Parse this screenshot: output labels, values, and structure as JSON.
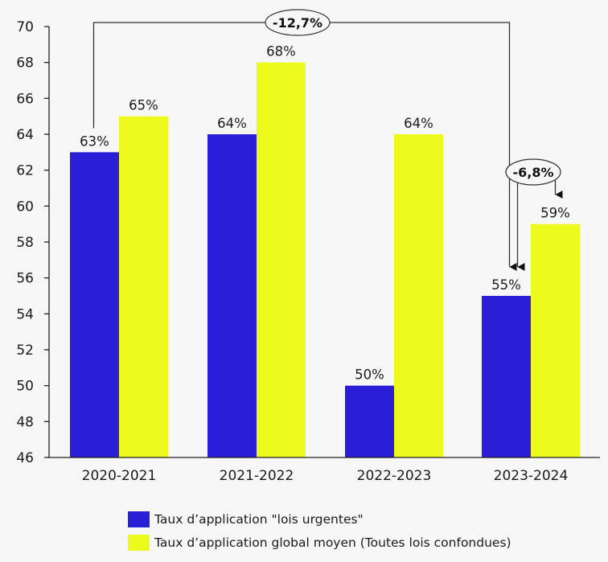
{
  "chart_data": {
    "type": "bar",
    "title": "",
    "xlabel": "",
    "ylabel": "",
    "categories": [
      "2020-2021",
      "2021-2022",
      "2022-2023",
      "2023-2024"
    ],
    "ylim": [
      46,
      70
    ],
    "yticks": [
      46,
      48,
      50,
      52,
      54,
      56,
      58,
      60,
      62,
      64,
      66,
      68,
      70
    ],
    "grid": false,
    "series": [
      {
        "name": "Taux d’application \"lois urgentes\"",
        "color": "#2a1fd6",
        "values": [
          63,
          64,
          50,
          55
        ],
        "labels": [
          "63%",
          "64%",
          "50%",
          "55%"
        ]
      },
      {
        "name": "Taux d’application global moyen (Toutes lois confondues)",
        "color": "#ecfa1e",
        "values": [
          65,
          68,
          64,
          59
        ],
        "labels": [
          "65%",
          "68%",
          "64%",
          "59%"
        ]
      }
    ],
    "legend": {
      "placement": "bottom"
    },
    "annotations": [
      {
        "text": "-12,7%",
        "from": {
          "series": 0,
          "category": "2020-2021"
        },
        "to": {
          "series": 0,
          "category": "2023-2024"
        }
      },
      {
        "text": "-6,8%",
        "from": {
          "series": 0,
          "category": "2023-2024"
        },
        "to": {
          "series": 1,
          "category": "2023-2024"
        }
      }
    ]
  }
}
